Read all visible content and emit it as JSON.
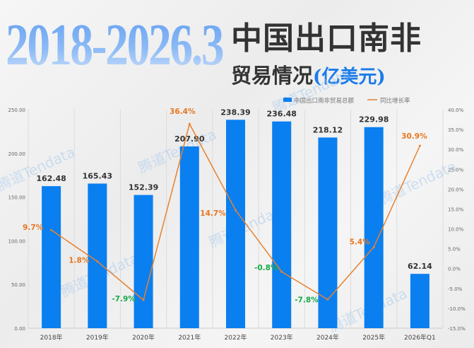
{
  "header": {
    "years": "2018-2026.3",
    "title_line1": "中国出口南非",
    "title_line2": "贸易情况",
    "unit": "(亿美元)"
  },
  "watermark": "腾道Tendata",
  "colors": {
    "bar": "#0a7ff0",
    "line": "#e8812e",
    "positive_label": "#e8761f",
    "negative_label": "#17a94a",
    "bar_label": "#333333"
  },
  "chart_data": {
    "type": "bar+line",
    "categories": [
      "2018年",
      "2019年",
      "2020年",
      "2021年",
      "2022年",
      "2023年",
      "2024年",
      "2025年",
      "2026年Q1"
    ],
    "series": [
      {
        "name": "中国出口南非贸易总额",
        "type": "bar",
        "axis": "left",
        "values": [
          162.48,
          165.43,
          152.39,
          207.9,
          238.39,
          236.48,
          218.12,
          229.98,
          62.14
        ],
        "labels": [
          "162.48",
          "165.43",
          "152.39",
          "207.90",
          "238.39",
          "236.48",
          "218.12",
          "229.98",
          "62.14"
        ]
      },
      {
        "name": "同比增长率",
        "type": "line",
        "axis": "right",
        "values": [
          9.7,
          1.8,
          -7.9,
          36.4,
          14.7,
          -0.8,
          -7.8,
          5.4,
          30.9
        ],
        "labels": [
          "9.7%",
          "1.8%",
          "-7.9%",
          "36.4%",
          "14.7%",
          "-0.8%",
          "-7.8%",
          "5.4%",
          "30.9%"
        ]
      }
    ],
    "left_axis": {
      "ylim": [
        0,
        250
      ],
      "ticks": [
        "0.00",
        "50.00",
        "100.00",
        "150.00",
        "200.00",
        "250.00"
      ]
    },
    "right_axis": {
      "ylim": [
        -15,
        40
      ],
      "ticks": [
        "-15.0%",
        "-10.0%",
        "-5.0%",
        "0.0%",
        "5.0%",
        "10.0%",
        "15.0%",
        "20.0%",
        "25.0%",
        "30.0%",
        "35.0%",
        "40.0%"
      ]
    },
    "legend": "top-right",
    "grid": "vertical"
  }
}
